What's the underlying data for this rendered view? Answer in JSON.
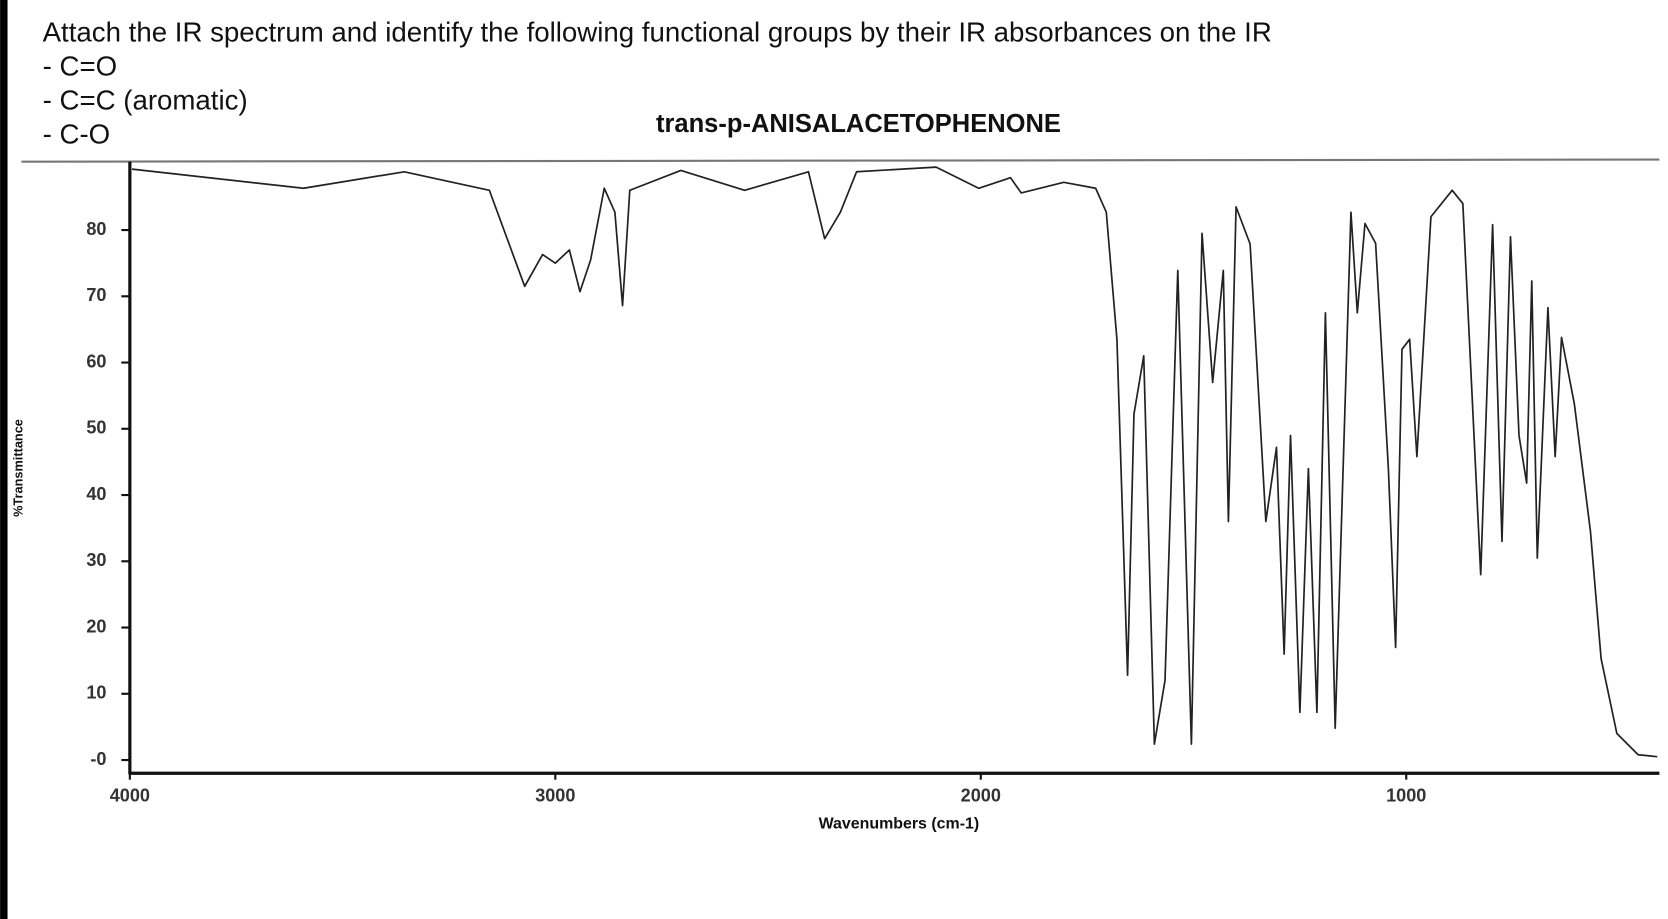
{
  "question": {
    "prompt": "Attach the IR spectrum and identify the following functional groups by their IR absorbances on the IR",
    "items": [
      "- C=O",
      "- C=C (aromatic)",
      "- C-O"
    ]
  },
  "chart_data": {
    "type": "line",
    "title": "trans-p-ANISALACETOPHENONE",
    "x_label": "Wavenumbers (cm-1)",
    "y_label": "%Transmittance",
    "x": [
      3995,
      3592,
      3355,
      3155,
      3072,
      3030,
      3000,
      2967,
      2942,
      2917,
      2885,
      2860,
      2842,
      2825,
      2705,
      2555,
      2405,
      2367,
      2330,
      2292,
      2105,
      2005,
      1930,
      1905,
      1805,
      1730,
      1705,
      1680,
      1655,
      1640,
      1617,
      1592,
      1567,
      1537,
      1505,
      1480,
      1455,
      1430,
      1418,
      1400,
      1367,
      1330,
      1305,
      1287,
      1272,
      1250,
      1230,
      1210,
      1190,
      1167,
      1130,
      1115,
      1097,
      1072,
      1042,
      1025,
      1010,
      992,
      975,
      942,
      892,
      867,
      825,
      797,
      775,
      755,
      735,
      717,
      705,
      692,
      667,
      650,
      635,
      605,
      567,
      542,
      505,
      455,
      410
    ],
    "values": [
      89.2,
      86.3,
      88.8,
      86,
      71.5,
      76.3,
      75,
      77,
      70.7,
      75.5,
      86.3,
      82.7,
      68.6,
      86,
      89,
      86,
      88.8,
      78.7,
      82.7,
      88.8,
      89.5,
      86.3,
      87.9,
      85.6,
      87.2,
      86.3,
      82.7,
      63.5,
      12.8,
      52.2,
      61,
      2.4,
      12,
      73.9,
      2.4,
      79.5,
      57,
      73.9,
      36,
      83.5,
      77.9,
      36,
      47.2,
      16,
      49,
      7.2,
      44,
      7.2,
      67.5,
      4.8,
      82.7,
      67.5,
      81,
      78,
      44,
      17,
      62,
      63.5,
      45.8,
      82,
      86,
      84,
      28,
      80.8,
      33,
      79,
      49,
      41.8,
      72.3,
      30.5,
      68.3,
      45.8,
      63.8,
      53.8,
      34.5,
      15.3,
      4,
      0.8,
      0.5
    ],
    "color": "#222222",
    "xlim": [
      4000,
      405
    ],
    "ylim": [
      -2,
      90
    ],
    "xticks": [
      4000,
      3000,
      2000,
      1000
    ],
    "yticks": [
      {
        "value": 0,
        "label": "-0"
      },
      10,
      20,
      30,
      40,
      50,
      60,
      70,
      80
    ]
  }
}
